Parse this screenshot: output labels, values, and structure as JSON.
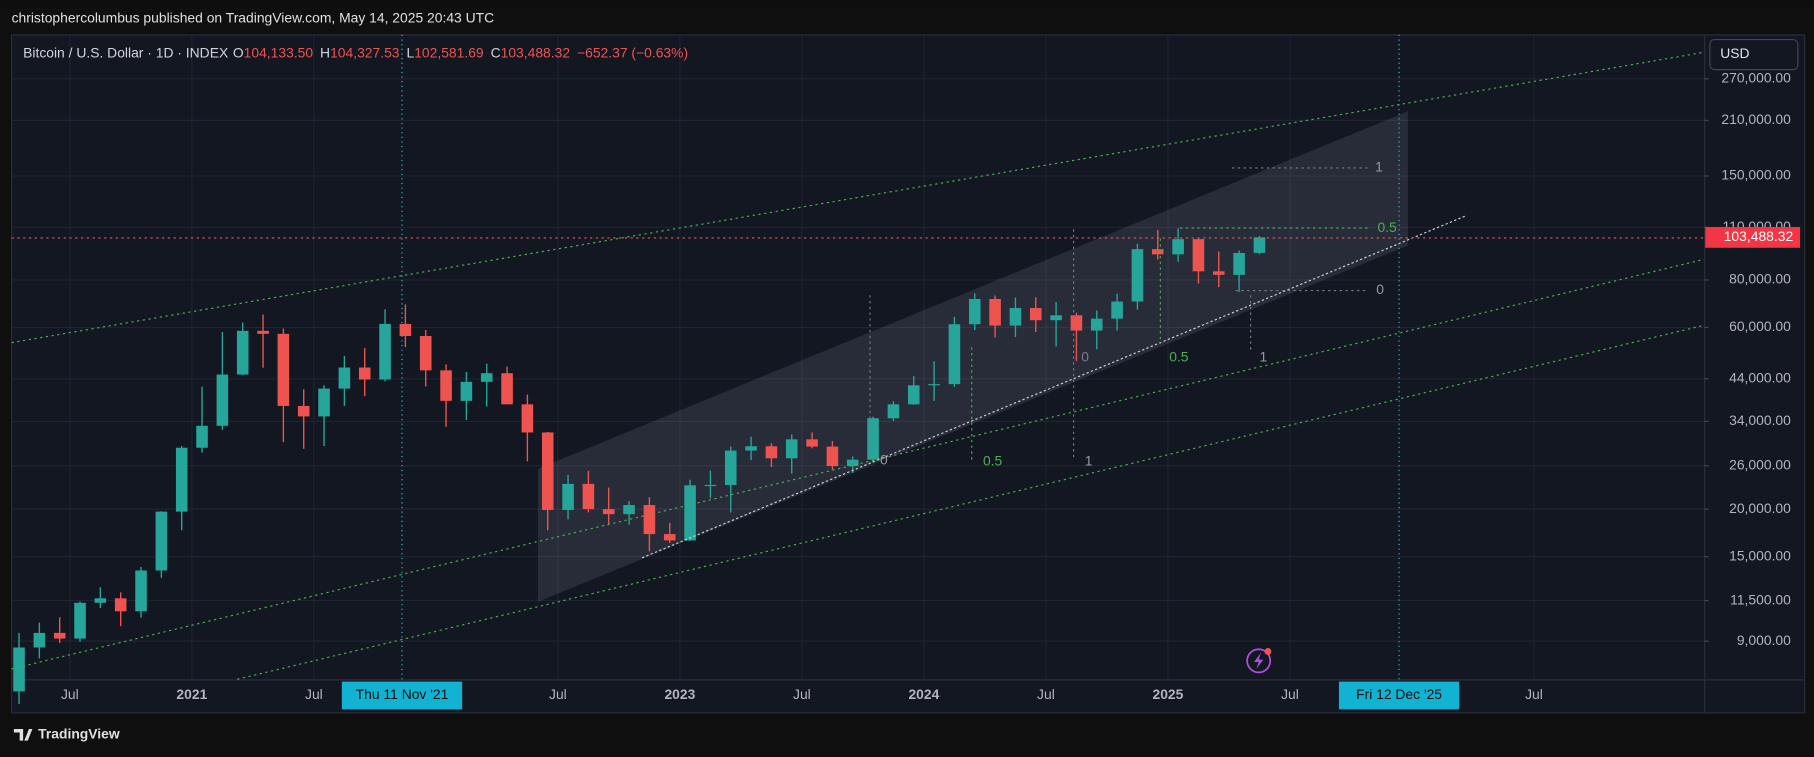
{
  "header": {
    "text": "christophercolumbus published on TradingView.com, May 14, 2025 20:43 UTC"
  },
  "legend": {
    "symbol": "Bitcoin / U.S. Dollar · 1D · INDEX",
    "ohlc": [
      {
        "label": "O",
        "value": "104,133.50"
      },
      {
        "label": "H",
        "value": "104,327.53"
      },
      {
        "label": "L",
        "value": "102,581.69"
      },
      {
        "label": "C",
        "value": "103,488.32"
      }
    ],
    "change": "−652.37 (−0.63%)"
  },
  "currency_button": "USD",
  "footer": {
    "brand": "TradingView"
  },
  "chart_data": {
    "type": "candlestick",
    "log_scale": true,
    "grid": true,
    "up_color": "#26a69a",
    "down_color": "#ef5350",
    "x": [
      "2020-04",
      "2020-05",
      "2020-06",
      "2020-07",
      "2020-08",
      "2020-09",
      "2020-10",
      "2020-11",
      "2020-12",
      "2021-01",
      "2021-02",
      "2021-03",
      "2021-04",
      "2021-05",
      "2021-06",
      "2021-07",
      "2021-08",
      "2021-09",
      "2021-10",
      "2021-11",
      "2021-12",
      "2022-01",
      "2022-02",
      "2022-03",
      "2022-04",
      "2022-05",
      "2022-06",
      "2022-07",
      "2022-08",
      "2022-09",
      "2022-10",
      "2022-11",
      "2022-12",
      "2023-01",
      "2023-02",
      "2023-03",
      "2023-04",
      "2023-05",
      "2023-06",
      "2023-07",
      "2023-08",
      "2023-09",
      "2023-10",
      "2023-11",
      "2023-12",
      "2024-01",
      "2024-02",
      "2024-03",
      "2024-04",
      "2024-05",
      "2024-06",
      "2024-07",
      "2024-08",
      "2024-09",
      "2024-10",
      "2024-11",
      "2024-12",
      "2025-01",
      "2025-02",
      "2025-03",
      "2025-04",
      "2025-05"
    ],
    "open": [
      6640,
      8660,
      9460,
      9140,
      11350,
      11660,
      10780,
      13800,
      19700,
      28990,
      33110,
      45140,
      58800,
      57750,
      37330,
      35040,
      41460,
      47100,
      43800,
      61300,
      57000,
      46300,
      38500,
      43200,
      45500,
      37700,
      31800,
      19900,
      23300,
      20000,
      19400,
      20500,
      17200,
      16550,
      23100,
      23150,
      28500,
      29250,
      27200,
      30500,
      29200,
      25950,
      26970,
      34650,
      37700,
      42300,
      42600,
      61200,
      71300,
      60700,
      67500,
      62700,
      64600,
      58900,
      63300,
      70200,
      96400,
      93400,
      102400,
      84300,
      82500,
      94200
    ],
    "high": [
      9460,
      10070,
      10400,
      11440,
      12470,
      12090,
      14100,
      19750,
      29300,
      41950,
      58350,
      61800,
      64900,
      59600,
      41300,
      42320,
      50500,
      52950,
      67000,
      69000,
      59100,
      48000,
      45800,
      48200,
      47400,
      40000,
      31900,
      24600,
      25200,
      22800,
      21000,
      21500,
      18400,
      23900,
      25250,
      29200,
      31000,
      29800,
      31400,
      31800,
      30200,
      27500,
      35000,
      38400,
      44700,
      48900,
      64000,
      73800,
      72800,
      71900,
      72000,
      70000,
      65600,
      66500,
      73600,
      99600,
      108300,
      109350,
      102700,
      95000,
      95700,
      104327.53
    ],
    "low": [
      6150,
      8110,
      8900,
      8970,
      10990,
      9850,
      10370,
      13200,
      17600,
      28150,
      32300,
      44950,
      47040,
      30000,
      28800,
      29300,
      37330,
      39600,
      43300,
      53300,
      42000,
      32900,
      34300,
      37200,
      37700,
      26700,
      17600,
      18800,
      19600,
      18200,
      18200,
      15500,
      16300,
      16500,
      21400,
      19600,
      26900,
      25800,
      24800,
      28900,
      25400,
      24900,
      26550,
      34100,
      37600,
      38500,
      41900,
      59100,
      56500,
      56600,
      58400,
      53500,
      49000,
      52600,
      58900,
      66800,
      90500,
      89200,
      78200,
      76600,
      74400,
      93400
    ],
    "close": [
      8660,
      9460,
      9140,
      11350,
      11660,
      10780,
      13800,
      19700,
      28990,
      33110,
      45140,
      58800,
      57750,
      37330,
      35040,
      41460,
      47100,
      43800,
      61300,
      57000,
      46300,
      38500,
      43200,
      45500,
      37700,
      31800,
      19900,
      23300,
      20000,
      19400,
      20500,
      17200,
      16550,
      23100,
      23150,
      28500,
      29250,
      27200,
      30500,
      29200,
      25950,
      26970,
      34650,
      37700,
      42300,
      42600,
      61200,
      71300,
      60700,
      67500,
      62700,
      64600,
      58900,
      63300,
      70200,
      96400,
      93400,
      102400,
      84300,
      82500,
      94200,
      103488.32
    ],
    "xlim": [
      "2020-04-05",
      "2027-03-12"
    ],
    "xticks": [
      {
        "value": "2020-07-01",
        "label": "Jul"
      },
      {
        "value": "2021-01-01",
        "label": "2021"
      },
      {
        "value": "2021-07-01",
        "label": "Jul"
      },
      {
        "value": "2022-07-01",
        "label": "Jul"
      },
      {
        "value": "2023-01-01",
        "label": "2023"
      },
      {
        "value": "2023-07-01",
        "label": "Jul"
      },
      {
        "value": "2024-01-01",
        "label": "2024"
      },
      {
        "value": "2024-07-01",
        "label": "Jul"
      },
      {
        "value": "2025-01-01",
        "label": "2025"
      },
      {
        "value": "2025-07-01",
        "label": "Jul"
      },
      {
        "value": "2026-07-01",
        "label": "Jul"
      }
    ],
    "crosshair_x": [
      {
        "value": "2021-11-11",
        "label": "Thu 11 Nov '21"
      },
      {
        "value": "2025-12-12",
        "label": "Fri 12 Dec '25"
      }
    ],
    "ylim": [
      7145,
      352200
    ],
    "yticks": [
      {
        "value": 9000,
        "label": "9,000.00"
      },
      {
        "value": 11500,
        "label": "11,500.00"
      },
      {
        "value": 15000,
        "label": "15,000.00"
      },
      {
        "value": 20000,
        "label": "20,000.00"
      },
      {
        "value": 26000,
        "label": "26,000.00"
      },
      {
        "value": 34000,
        "label": "34,000.00"
      },
      {
        "value": 44000,
        "label": "44,000.00"
      },
      {
        "value": 60000,
        "label": "60,000.00"
      },
      {
        "value": 80000,
        "label": "80,000.00"
      },
      {
        "value": 110000,
        "label": "110,000.00"
      },
      {
        "value": 150000,
        "label": "150,000.00"
      },
      {
        "value": 210000,
        "label": "210,000.00"
      },
      {
        "value": 270000,
        "label": "270,000.00"
      }
    ],
    "last_price": {
      "value": 103488.32,
      "label": "103,488.32"
    },
    "annotations": [
      "1",
      "0.5",
      "0",
      "0.5",
      "1",
      "0",
      "0.5",
      "1",
      "0"
    ]
  }
}
